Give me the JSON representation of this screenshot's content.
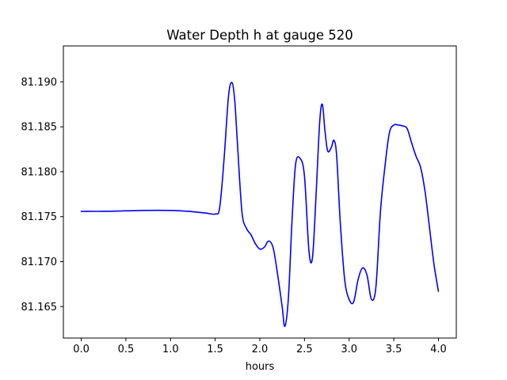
{
  "chart_data": {
    "type": "line",
    "title": "Water Depth h at gauge 520",
    "xlabel": "hours",
    "ylabel": "",
    "xlim": [
      -0.2,
      4.2
    ],
    "ylim": [
      81.1615,
      81.194
    ],
    "grid": false,
    "line_color": "#0000ff",
    "xticks": [
      0.0,
      0.5,
      1.0,
      1.5,
      2.0,
      2.5,
      3.0,
      3.5,
      4.0
    ],
    "xtick_labels": [
      "0.0",
      "0.5",
      "1.0",
      "1.5",
      "2.0",
      "2.5",
      "3.0",
      "3.5",
      "4.0"
    ],
    "yticks": [
      81.165,
      81.17,
      81.175,
      81.18,
      81.185,
      81.19
    ],
    "ytick_labels": [
      "81.165",
      "81.170",
      "81.175",
      "81.180",
      "81.185",
      "81.190"
    ],
    "series": [
      {
        "x": [
          0.0,
          0.3,
          0.7,
          1.0,
          1.2,
          1.4,
          1.5,
          1.55,
          1.6,
          1.65,
          1.69,
          1.72,
          1.75,
          1.8,
          1.85,
          1.9,
          1.95,
          2.0,
          2.05,
          2.1,
          2.15,
          2.2,
          2.25,
          2.28,
          2.32,
          2.36,
          2.4,
          2.45,
          2.5,
          2.55,
          2.59,
          2.63,
          2.67,
          2.7,
          2.73,
          2.76,
          2.8,
          2.83,
          2.86,
          2.9,
          2.95,
          3.0,
          3.05,
          3.1,
          3.15,
          3.2,
          3.25,
          3.3,
          3.35,
          3.4,
          3.45,
          3.5,
          3.55,
          3.6,
          3.65,
          3.7,
          3.75,
          3.8,
          3.85,
          3.9,
          3.95,
          4.0
        ],
        "y": [
          81.1756,
          81.1756,
          81.1757,
          81.1757,
          81.1756,
          81.1754,
          81.1753,
          81.176,
          81.1815,
          81.1885,
          81.1899,
          81.1878,
          81.183,
          81.1755,
          81.1737,
          81.173,
          81.172,
          81.1714,
          81.1716,
          81.1723,
          81.1715,
          81.1685,
          81.165,
          81.1628,
          81.166,
          81.1745,
          81.1808,
          81.1815,
          81.1795,
          81.1712,
          81.1705,
          81.1775,
          81.1855,
          81.1875,
          81.1845,
          81.1823,
          81.1827,
          81.1835,
          81.1818,
          81.1745,
          81.168,
          81.1658,
          81.1655,
          81.168,
          81.1693,
          81.1685,
          81.1658,
          81.1672,
          81.1755,
          81.1805,
          81.1843,
          81.1852,
          81.1852,
          81.1851,
          81.1848,
          81.1832,
          81.1817,
          81.1805,
          81.1778,
          81.1738,
          81.1697,
          81.1667
        ]
      }
    ]
  }
}
